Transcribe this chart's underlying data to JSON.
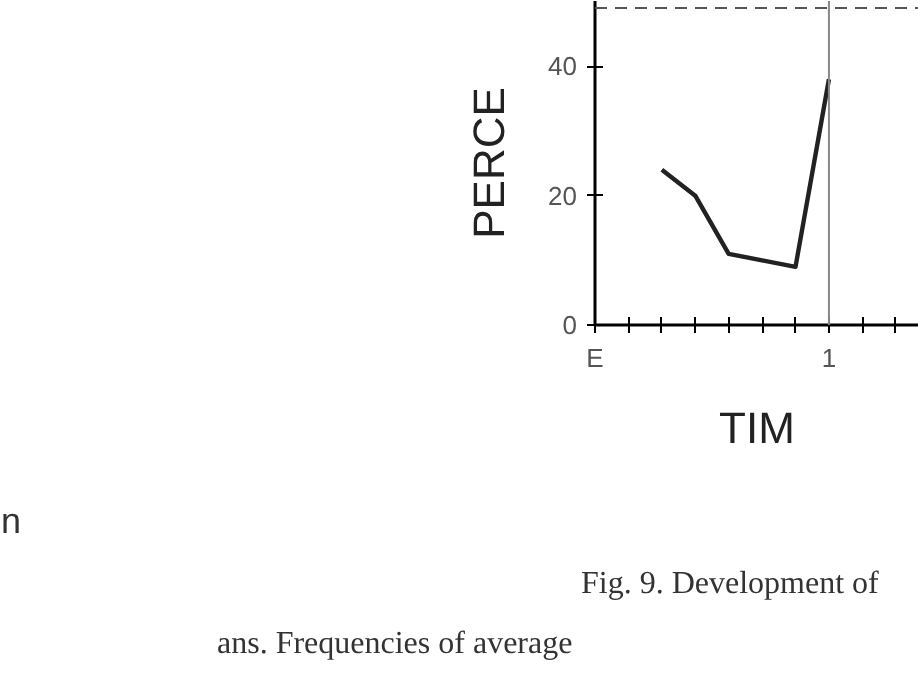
{
  "chart_data": {
    "type": "line",
    "ylabel": "PERCE",
    "xlabel": "TIM",
    "categories": [
      "E",
      null,
      null,
      null,
      null,
      null,
      null,
      "1",
      null,
      null
    ],
    "series": [
      {
        "color": "#222222",
        "values": [
          null,
          null,
          24,
          20,
          11,
          10,
          9,
          38,
          null,
          null
        ]
      }
    ],
    "ylim": [
      0,
      50.1
    ],
    "yticks": [
      0,
      20,
      40
    ],
    "ref_lines": [
      {
        "axis": "y",
        "value": 49,
        "line_style": "dashed",
        "color": "#555555"
      },
      {
        "axis": "x",
        "value": "1",
        "line_style": "solid",
        "color": "#888888"
      }
    ],
    "grid": false,
    "marker": "none",
    "line_style": "solid",
    "annotations": [
      "n",
      "Fig. 9.    Development of",
      "ans. Frequencies of average"
    ]
  }
}
